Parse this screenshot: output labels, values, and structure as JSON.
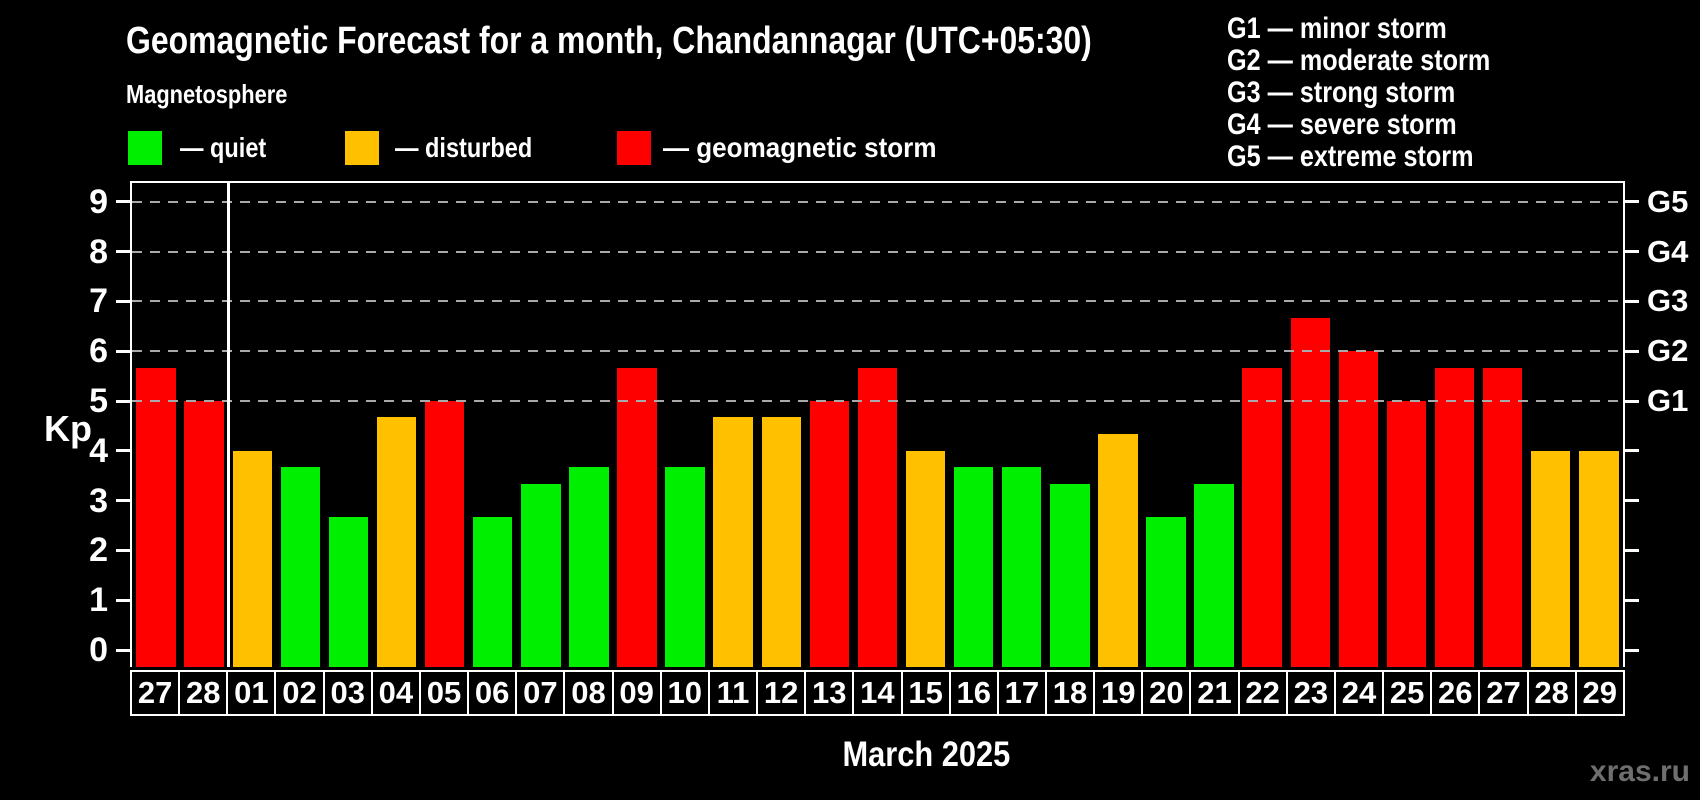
{
  "title": "Geomagnetic Forecast for a month, Chandannagar (UTC+05:30)",
  "subtitle": "Magnetosphere",
  "legend": {
    "items": [
      {
        "label": "— quiet",
        "status": "quiet",
        "color": "#00ee00"
      },
      {
        "label": "— disturbed",
        "status": "disturbed",
        "color": "#ffc000"
      },
      {
        "label": "— geomagnetic storm",
        "status": "storm",
        "color": "#ff0000"
      }
    ]
  },
  "g_scale_legend": [
    {
      "code": "G1",
      "text": "G1 — minor storm"
    },
    {
      "code": "G2",
      "text": "G2 — moderate storm"
    },
    {
      "code": "G3",
      "text": "G3 — strong storm"
    },
    {
      "code": "G4",
      "text": "G4 — severe storm"
    },
    {
      "code": "G5",
      "text": "G5 — extreme storm"
    }
  ],
  "axes": {
    "y_label": "Kp",
    "y_ticks": [
      0,
      1,
      2,
      3,
      4,
      5,
      6,
      7,
      8,
      9
    ],
    "right_labels": [
      {
        "label": "G1",
        "kp": 5
      },
      {
        "label": "G2",
        "kp": 6
      },
      {
        "label": "G3",
        "kp": 7
      },
      {
        "label": "G4",
        "kp": 8
      },
      {
        "label": "G5",
        "kp": 9
      }
    ],
    "x_label": "March 2025"
  },
  "watermark": "xras.ru",
  "chart_data": {
    "type": "bar",
    "title": "Geomagnetic Forecast for a month, Chandannagar (UTC+05:30)",
    "subtitle": "Magnetosphere",
    "xlabel": "March 2025",
    "ylabel": "Kp",
    "ylim": [
      0,
      9
    ],
    "grid": "horizontal dashed lines at Kp 5-9 only",
    "gridlines_at": [
      5,
      6,
      7,
      8,
      9
    ],
    "legend_position": "top-left",
    "month_separator_after_index": 1,
    "categories": [
      "27",
      "28",
      "01",
      "02",
      "03",
      "04",
      "05",
      "06",
      "07",
      "08",
      "09",
      "10",
      "11",
      "12",
      "13",
      "14",
      "15",
      "16",
      "17",
      "18",
      "19",
      "20",
      "21",
      "22",
      "23",
      "24",
      "25",
      "26",
      "27",
      "28",
      "29"
    ],
    "values": [
      5.67,
      5.0,
      4.0,
      3.67,
      2.67,
      4.67,
      5.0,
      2.67,
      3.33,
      3.67,
      5.67,
      3.67,
      4.67,
      4.67,
      5.0,
      5.67,
      4.0,
      3.67,
      3.67,
      3.33,
      4.33,
      2.67,
      3.33,
      5.67,
      6.67,
      6.0,
      5.0,
      5.67,
      5.67,
      4.0,
      4.0
    ],
    "statuses": [
      "storm",
      "storm",
      "disturbed",
      "quiet",
      "quiet",
      "disturbed",
      "storm",
      "quiet",
      "quiet",
      "quiet",
      "storm",
      "quiet",
      "disturbed",
      "disturbed",
      "storm",
      "storm",
      "disturbed",
      "quiet",
      "quiet",
      "quiet",
      "disturbed",
      "quiet",
      "quiet",
      "storm",
      "storm",
      "storm",
      "storm",
      "storm",
      "storm",
      "disturbed",
      "disturbed"
    ],
    "colors": {
      "quiet": "#00ee00",
      "disturbed": "#ffc000",
      "storm": "#ff0000"
    },
    "right_axis_labels": [
      {
        "label": "G1",
        "kp": 5
      },
      {
        "label": "G2",
        "kp": 6
      },
      {
        "label": "G3",
        "kp": 7
      },
      {
        "label": "G4",
        "kp": 8
      },
      {
        "label": "G5",
        "kp": 9
      }
    ]
  }
}
